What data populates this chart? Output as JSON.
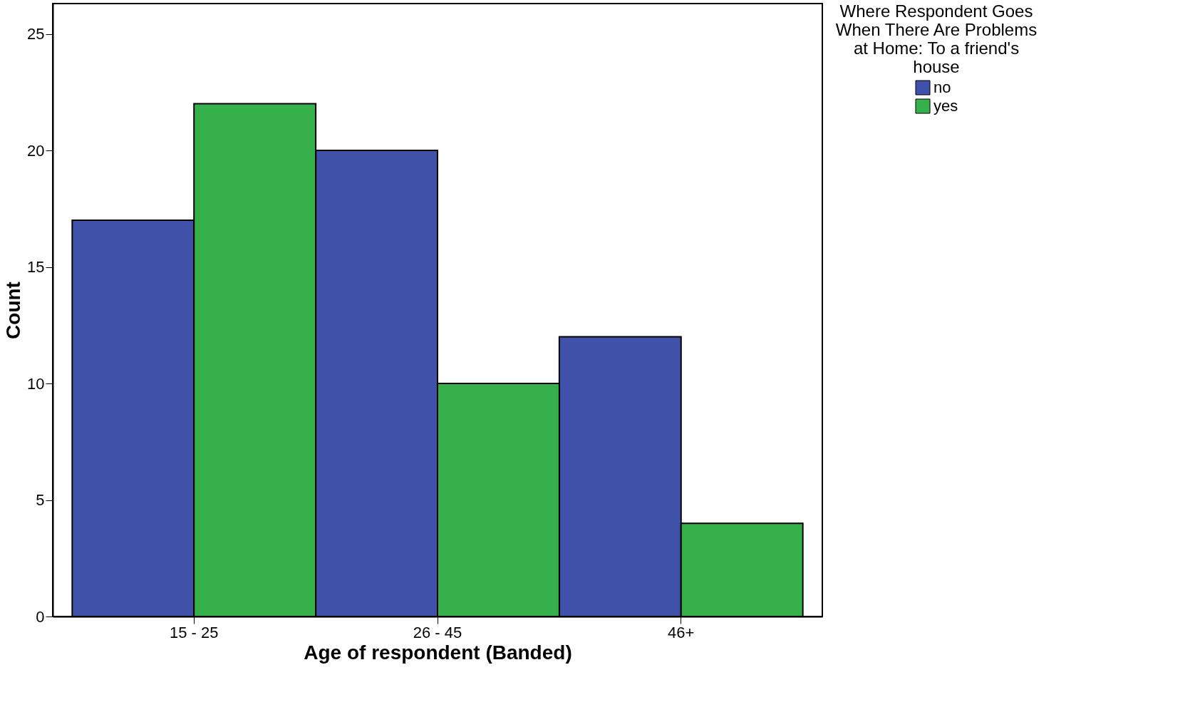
{
  "chart_data": {
    "type": "bar",
    "xlabel": "Age of respondent (Banded)",
    "ylabel": "Count",
    "legend_title": "Where Respondent Goes When There Are Problems at Home: To a friend's house",
    "categories": [
      "15 - 25",
      "26 - 45",
      "46+"
    ],
    "series": [
      {
        "name": "no",
        "color": "#3f51a8",
        "values": [
          17,
          20,
          12
        ]
      },
      {
        "name": "yes",
        "color": "#36b04a",
        "values": [
          22,
          10,
          4
        ]
      }
    ],
    "ylim": [
      0,
      26.3
    ],
    "yticks": [
      0,
      5,
      10,
      15,
      20,
      25
    ],
    "grid": false,
    "legend": "top right"
  }
}
